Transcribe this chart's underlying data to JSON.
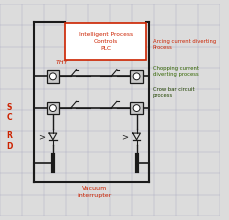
{
  "bg_color": "#dcdcdc",
  "grid_color": "#b8b8cc",
  "line_color": "#1a1a1a",
  "red_color": "#cc2200",
  "green_color": "#336600",
  "dark_green": "#224400",
  "box_fill": "#c8c8c8",
  "white": "#ffffff",
  "title_text": "Intelligent Process\nControls\nPLC",
  "label_arc": "Arcing current diverting\nProcess",
  "label_chop": "Chopping current\ndiverting process",
  "label_crow": "Crow bar circuit\nprocess",
  "label_vacuum": "Vacuum\ninterrupter",
  "label_thy": "THY",
  "label_scrd": [
    "S",
    "C",
    "R",
    "D"
  ]
}
